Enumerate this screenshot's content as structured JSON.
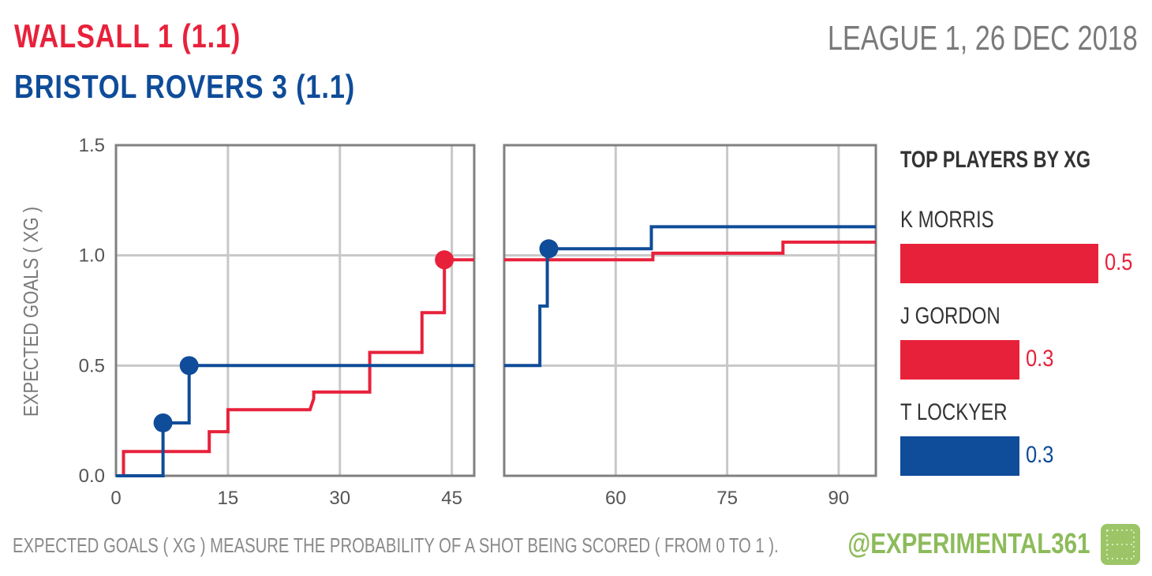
{
  "header": {
    "home_title": "WALSALL  1  (1.1)",
    "away_title": "BRISTOL ROVERS  3  (1.1)",
    "match_info": "LEAGUE 1, 26 DEC 2018"
  },
  "colors": {
    "home": "#e8213b",
    "away": "#0f4c99",
    "grid": "#c8c8c8",
    "frame": "#808080",
    "brand": "#8dbb5a"
  },
  "chart_data": {
    "type": "line",
    "step": true,
    "ylabel": "EXPECTED GOALS ( XG )",
    "ylim": [
      0,
      1.5
    ],
    "yticks": [
      "0.0",
      "0.5",
      "1.0",
      "1.5"
    ],
    "panels": [
      {
        "name": "first-half",
        "xlim": [
          0,
          48
        ],
        "xticks": [
          0,
          15,
          30,
          45
        ]
      },
      {
        "name": "second-half",
        "xlim": [
          45,
          95
        ],
        "xticks": [
          60,
          75,
          90
        ]
      }
    ],
    "grid": true,
    "series": [
      {
        "name": "Walsall",
        "color": "#e8213b",
        "first_half": [
          [
            0,
            0
          ],
          [
            1,
            0
          ],
          [
            1,
            0.11
          ],
          [
            12.5,
            0.11
          ],
          [
            12.5,
            0.2
          ],
          [
            15,
            0.2
          ],
          [
            15,
            0.3
          ],
          [
            26,
            0.3
          ],
          [
            26.5,
            0.35
          ],
          [
            26.5,
            0.38
          ],
          [
            34,
            0.38
          ],
          [
            34,
            0.56
          ],
          [
            41,
            0.56
          ],
          [
            41,
            0.74
          ],
          [
            44,
            0.74
          ],
          [
            44,
            0.98
          ],
          [
            48,
            0.98
          ]
        ],
        "second_half": [
          [
            45,
            0.98
          ],
          [
            65,
            0.98
          ],
          [
            65,
            1.01
          ],
          [
            82.5,
            1.01
          ],
          [
            82.5,
            1.06
          ],
          [
            95,
            1.06
          ]
        ],
        "goals": [
          [
            44,
            0.98
          ]
        ]
      },
      {
        "name": "Bristol Rovers",
        "color": "#0f4c99",
        "first_half": [
          [
            0,
            0
          ],
          [
            6.3,
            0
          ],
          [
            6.3,
            0.24
          ],
          [
            9.8,
            0.24
          ],
          [
            9.8,
            0.5
          ],
          [
            48,
            0.5
          ]
        ],
        "second_half": [
          [
            45,
            0.5
          ],
          [
            49.8,
            0.5
          ],
          [
            49.8,
            0.77
          ],
          [
            50.8,
            0.77
          ],
          [
            50.8,
            1.03
          ],
          [
            64.8,
            1.03
          ],
          [
            64.8,
            1.13
          ],
          [
            95,
            1.13
          ]
        ],
        "goals": [
          [
            6.3,
            0.24
          ],
          [
            9.8,
            0.5
          ],
          [
            51,
            1.03
          ]
        ]
      }
    ]
  },
  "players": {
    "heading": "TOP PLAYERS BY XG",
    "max_value": 0.5,
    "items": [
      {
        "name": "K MORRIS",
        "value": 0.5,
        "label": "0.5",
        "team": "home"
      },
      {
        "name": "J GORDON",
        "value": 0.3,
        "label": "0.3",
        "team": "home"
      },
      {
        "name": "T LOCKYER",
        "value": 0.3,
        "label": "0.3",
        "team": "away"
      }
    ]
  },
  "footer": {
    "note": "EXPECTED GOALS ( XG ) MEASURE THE PROBABILITY  OF A SHOT BEING SCORED ( FROM 0 TO 1 ).",
    "handle": "@EXPERIMENTAL361"
  }
}
